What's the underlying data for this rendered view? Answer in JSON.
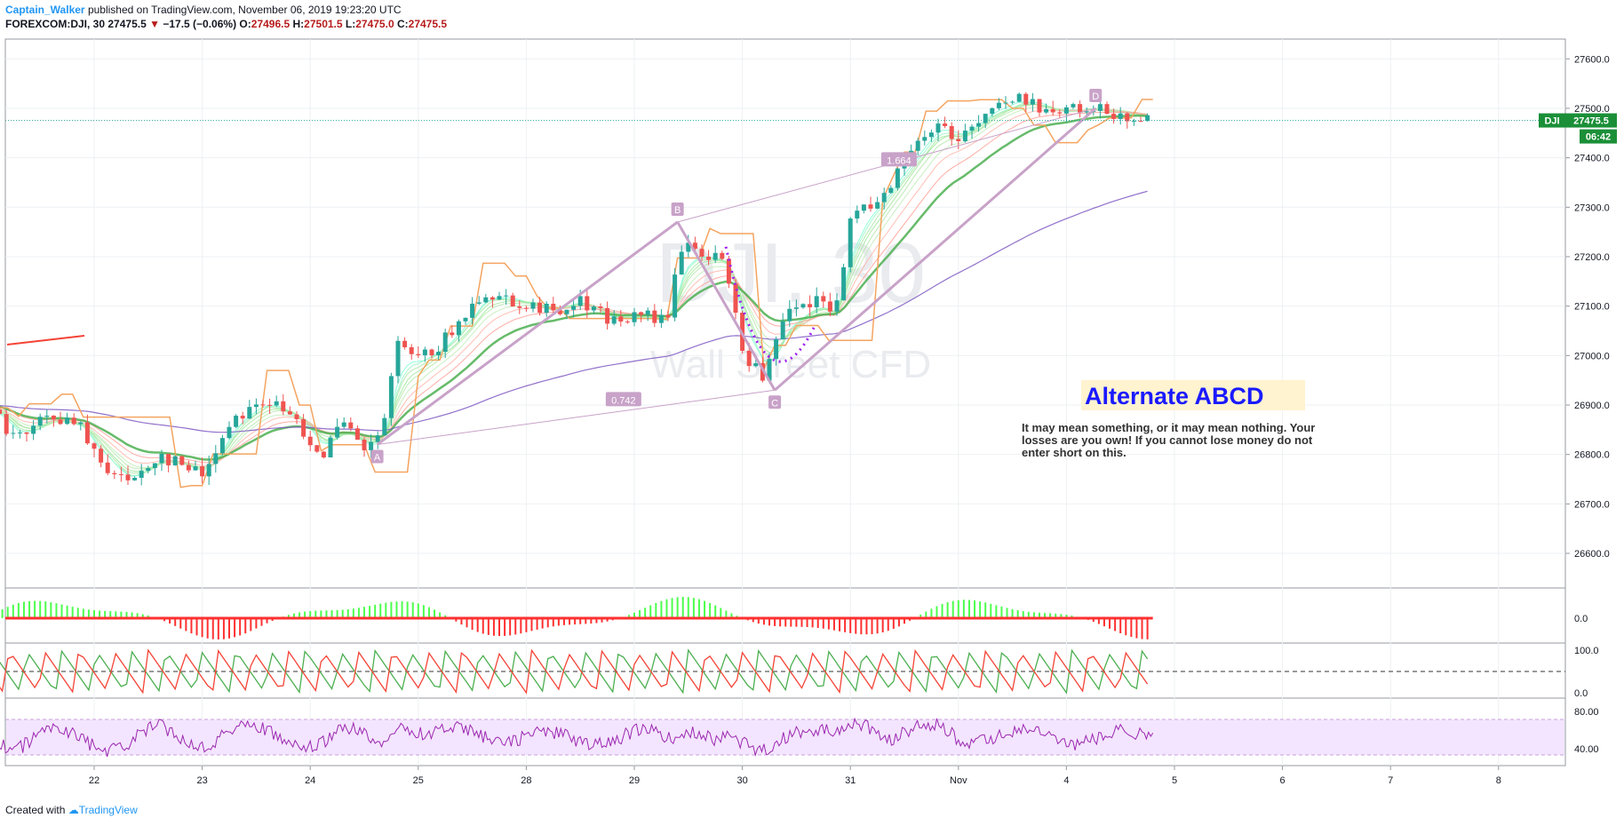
{
  "header": {
    "author": "Captain_Walker",
    "published": "published on TradingView.com, November 06, 2019 19:23:20 UTC",
    "symbol": "FOREXCOM:DJI, 30",
    "last": "27475.5",
    "arrow": "▼",
    "change": "−17.5 (−0.06%)",
    "o_label": "O:",
    "o_val": "27496.5",
    "h_label": "H:",
    "h_val": "27501.5",
    "l_label": "L:",
    "l_val": "27475.0",
    "c_label": "C:",
    "c_val": "27475.5"
  },
  "footer": {
    "created": "Created with",
    "brand": "TradingView"
  },
  "colors": {
    "up": "#26a69a",
    "down": "#ef5350",
    "orange": "#f4a460",
    "pattern": "#c8a2c8",
    "purple": "#7e57c2",
    "green": "#4caf50",
    "red": "#f44336",
    "blue": "#1a1aff",
    "rsi_fill": "#f3e5ff",
    "rsi_line": "#9c27b0"
  },
  "chart_data": {
    "type": "candlestick",
    "watermark": {
      "line1": "DJI, 30",
      "line2": "Wall Street CFD"
    },
    "price_axis": {
      "ticks": [
        27600,
        27500,
        27400,
        27300,
        27200,
        27100,
        27000,
        26900,
        26800,
        26700,
        26600
      ],
      "ylim": [
        26530,
        27640
      ]
    },
    "time_axis": {
      "labels": [
        "22",
        "23",
        "24",
        "25",
        "28",
        "29",
        "30",
        "31",
        "Nov",
        "4",
        "5",
        "6",
        "7",
        "8"
      ]
    },
    "last_price_label": {
      "symbol": "DJI",
      "price": "27475.5",
      "countdown": "06:42"
    },
    "price_path": [
      {
        "t": 0.0,
        "p": 26900
      },
      {
        "t": 0.3,
        "p": 26830
      },
      {
        "t": 0.6,
        "p": 26880
      },
      {
        "t": 0.9,
        "p": 26850
      },
      {
        "t": 1.0,
        "p": 26800
      },
      {
        "t": 1.3,
        "p": 26740
      },
      {
        "t": 1.6,
        "p": 26800
      },
      {
        "t": 2.0,
        "p": 26760
      },
      {
        "t": 2.3,
        "p": 26880
      },
      {
        "t": 2.6,
        "p": 26910
      },
      {
        "t": 2.9,
        "p": 26860
      },
      {
        "t": 3.1,
        "p": 26800
      },
      {
        "t": 3.3,
        "p": 26860
      },
      {
        "t": 3.5,
        "p": 26810
      },
      {
        "t": 3.65,
        "p": 26830
      },
      {
        "t": 3.8,
        "p": 27020
      },
      {
        "t": 4.0,
        "p": 26990
      },
      {
        "t": 4.3,
        "p": 27040
      },
      {
        "t": 4.6,
        "p": 27130
      },
      {
        "t": 4.9,
        "p": 27110
      },
      {
        "t": 5.2,
        "p": 27090
      },
      {
        "t": 5.5,
        "p": 27110
      },
      {
        "t": 5.8,
        "p": 27070
      },
      {
        "t": 6.1,
        "p": 27080
      },
      {
        "t": 6.3,
        "p": 27070
      },
      {
        "t": 6.45,
        "p": 27230
      },
      {
        "t": 6.7,
        "p": 27200
      },
      {
        "t": 6.85,
        "p": 27180
      },
      {
        "t": 7.0,
        "p": 27010
      },
      {
        "t": 7.2,
        "p": 26950
      },
      {
        "t": 7.4,
        "p": 27080
      },
      {
        "t": 7.7,
        "p": 27110
      },
      {
        "t": 7.85,
        "p": 27080
      },
      {
        "t": 8.0,
        "p": 27270
      },
      {
        "t": 8.3,
        "p": 27330
      },
      {
        "t": 8.6,
        "p": 27420
      },
      {
        "t": 8.8,
        "p": 27470
      },
      {
        "t": 9.0,
        "p": 27440
      },
      {
        "t": 9.3,
        "p": 27500
      },
      {
        "t": 9.6,
        "p": 27520
      },
      {
        "t": 9.9,
        "p": 27490
      },
      {
        "t": 10.2,
        "p": 27500
      },
      {
        "t": 10.5,
        "p": 27490
      },
      {
        "t": 10.8,
        "p": 27475
      }
    ],
    "pattern": {
      "points": [
        {
          "name": "A",
          "t": 3.62,
          "p": 26820
        },
        {
          "name": "B",
          "t": 6.4,
          "p": 27270
        },
        {
          "name": "C",
          "t": 7.3,
          "p": 26930
        },
        {
          "name": "D",
          "t": 10.27,
          "p": 27500
        }
      ],
      "ratios": [
        {
          "label": "0.742",
          "t": 5.9,
          "p": 26910
        },
        {
          "label": "1.664",
          "t": 8.45,
          "p": 27395
        }
      ]
    },
    "annotation": {
      "title": "Alternate ABCD",
      "text": [
        "It may mean something, or it may mean nothing. Your",
        "losses are you own! If you cannot lose money do not",
        "enter short on this."
      ]
    },
    "momentum_panel": {
      "ticks": [
        "0.0"
      ]
    },
    "stoch_panel": {
      "ticks": [
        "100.0",
        "0.0"
      ]
    },
    "rsi_panel": {
      "ticks": [
        "80.00",
        "40.00"
      ]
    }
  }
}
